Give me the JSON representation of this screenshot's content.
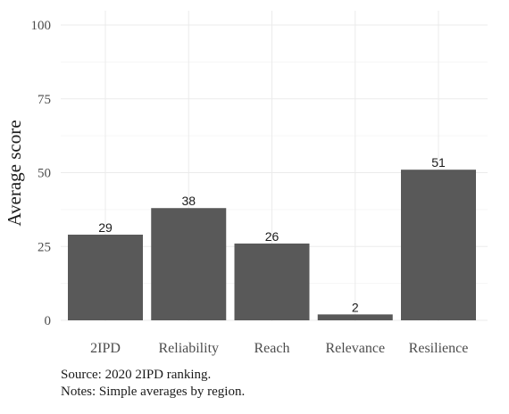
{
  "chart_data": {
    "type": "bar",
    "categories": [
      "2IPD",
      "Reliability",
      "Reach",
      "Relevance",
      "Resilience"
    ],
    "values": [
      29,
      38,
      26,
      2,
      51
    ],
    "data_labels": [
      "29",
      "38",
      "26",
      "2",
      "51"
    ],
    "ylabel": "Average score",
    "ylim": [
      0,
      100
    ],
    "yticks": [
      0,
      25,
      50,
      75,
      100
    ],
    "grid": true,
    "bar_color": "#595959"
  },
  "caption": {
    "source": "Source: 2020 2IPD ranking.",
    "notes": "Notes: Simple averages by region."
  }
}
